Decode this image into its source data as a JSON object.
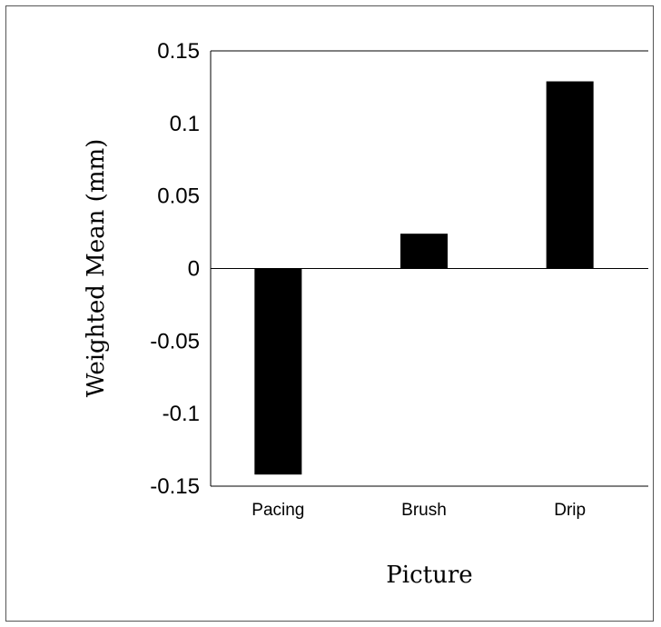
{
  "chart_data": {
    "type": "bar",
    "categories": [
      "Pacing",
      "Brush",
      "Drip"
    ],
    "values": [
      -0.142,
      0.024,
      0.129
    ],
    "xlabel": "Picture",
    "ylabel": "Weighted Mean (mm)",
    "ylim": [
      -0.15,
      0.15
    ],
    "yticks": [
      "0.15",
      "0.1",
      "0.05",
      "0",
      "-0.05",
      "-0.1",
      "-0.15"
    ],
    "ytick_values": [
      0.15,
      0.1,
      0.05,
      0,
      -0.05,
      -0.1,
      -0.15
    ],
    "grid": false,
    "legend": "none",
    "bar_color": "#000000"
  }
}
